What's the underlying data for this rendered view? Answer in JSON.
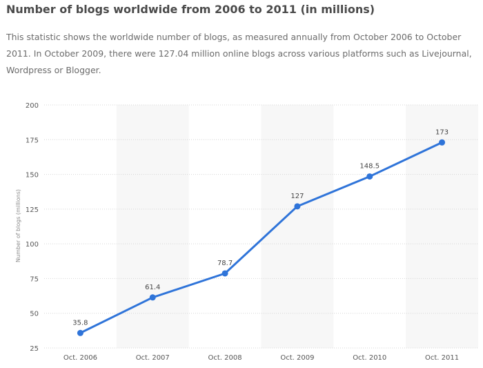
{
  "page": {
    "title": "Number of blogs worldwide from 2006 to 2011 (in millions)",
    "description": "This statistic shows the worldwide number of blogs, as measured annually from October 2006 to October 2011. In October 2009, there were 127.04 million online blogs across various platforms such as Livejournal, Wordpress or Blogger."
  },
  "chart_data": {
    "type": "line",
    "categories": [
      "Oct. 2006",
      "Oct. 2007",
      "Oct. 2008",
      "Oct. 2009",
      "Oct. 2010",
      "Oct. 2011"
    ],
    "series": [
      {
        "values": [
          35.8,
          61.4,
          78.7,
          127,
          148.5,
          173
        ],
        "labels": [
          "35.8",
          "61.4",
          "78.7",
          "127",
          "148.5",
          "173"
        ]
      }
    ],
    "ylabel": "Number of blogs (millions)",
    "ylim": [
      25,
      200
    ],
    "yticks": [
      25,
      50,
      75,
      100,
      125,
      150,
      175,
      200
    ],
    "grid": true,
    "colors": {
      "line": "#2f74d9",
      "band": "#f7f7f7",
      "grid": "#d5d5d5"
    }
  }
}
